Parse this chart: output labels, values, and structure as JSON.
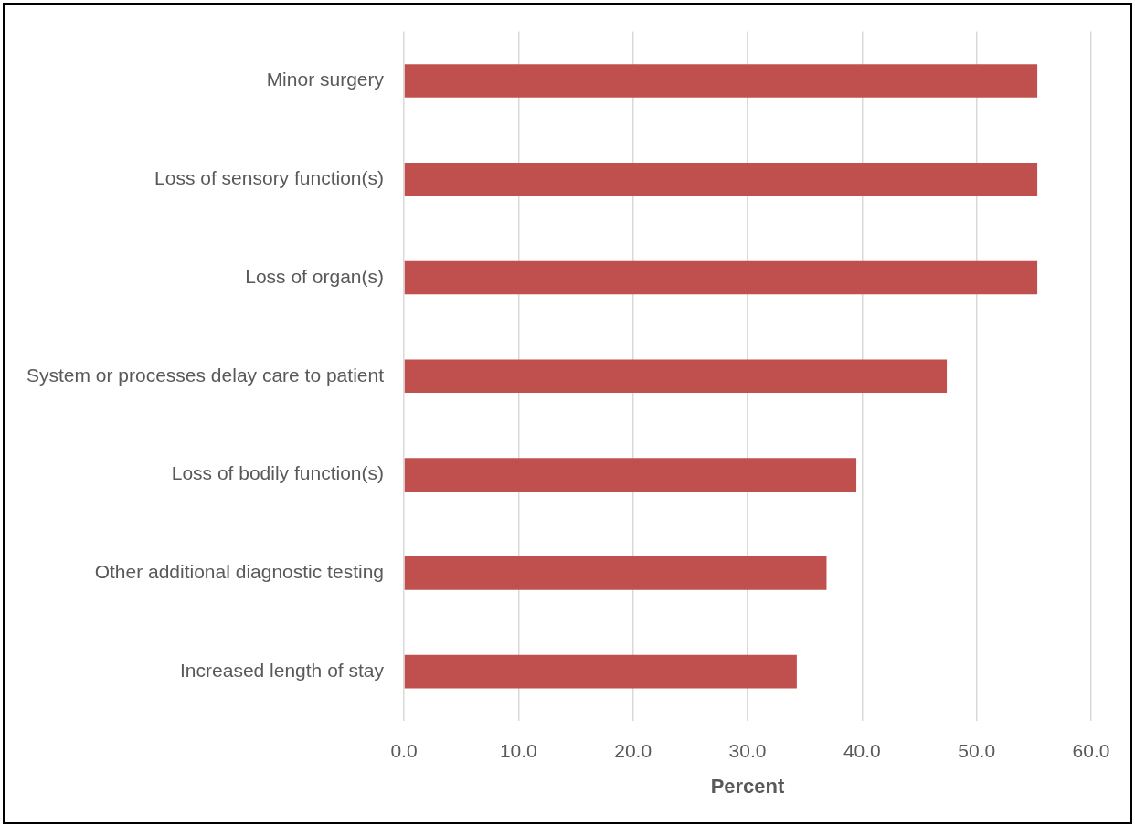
{
  "chart_data": {
    "type": "bar",
    "orientation": "horizontal",
    "categories": [
      "Minor surgery",
      "Loss of sensory function(s)",
      "Loss of organ(s)",
      "System or processes delay care to patient",
      "Loss of bodily function(s)",
      "Other additional diagnostic testing",
      "Increased length of stay"
    ],
    "values": [
      55.3,
      55.3,
      55.3,
      47.4,
      39.5,
      36.9,
      34.3
    ],
    "color": "#c0504d",
    "xlim": [
      0,
      60
    ],
    "xticks": [
      {
        "value": 0,
        "label": "0.0"
      },
      {
        "value": 10,
        "label": "10.0"
      },
      {
        "value": 20,
        "label": "20.0"
      },
      {
        "value": 30,
        "label": "30.0"
      },
      {
        "value": 40,
        "label": "40.0"
      },
      {
        "value": 50,
        "label": "50.0"
      },
      {
        "value": 60,
        "label": "60.0"
      }
    ],
    "xlabel": "Percent",
    "grid": "x"
  }
}
